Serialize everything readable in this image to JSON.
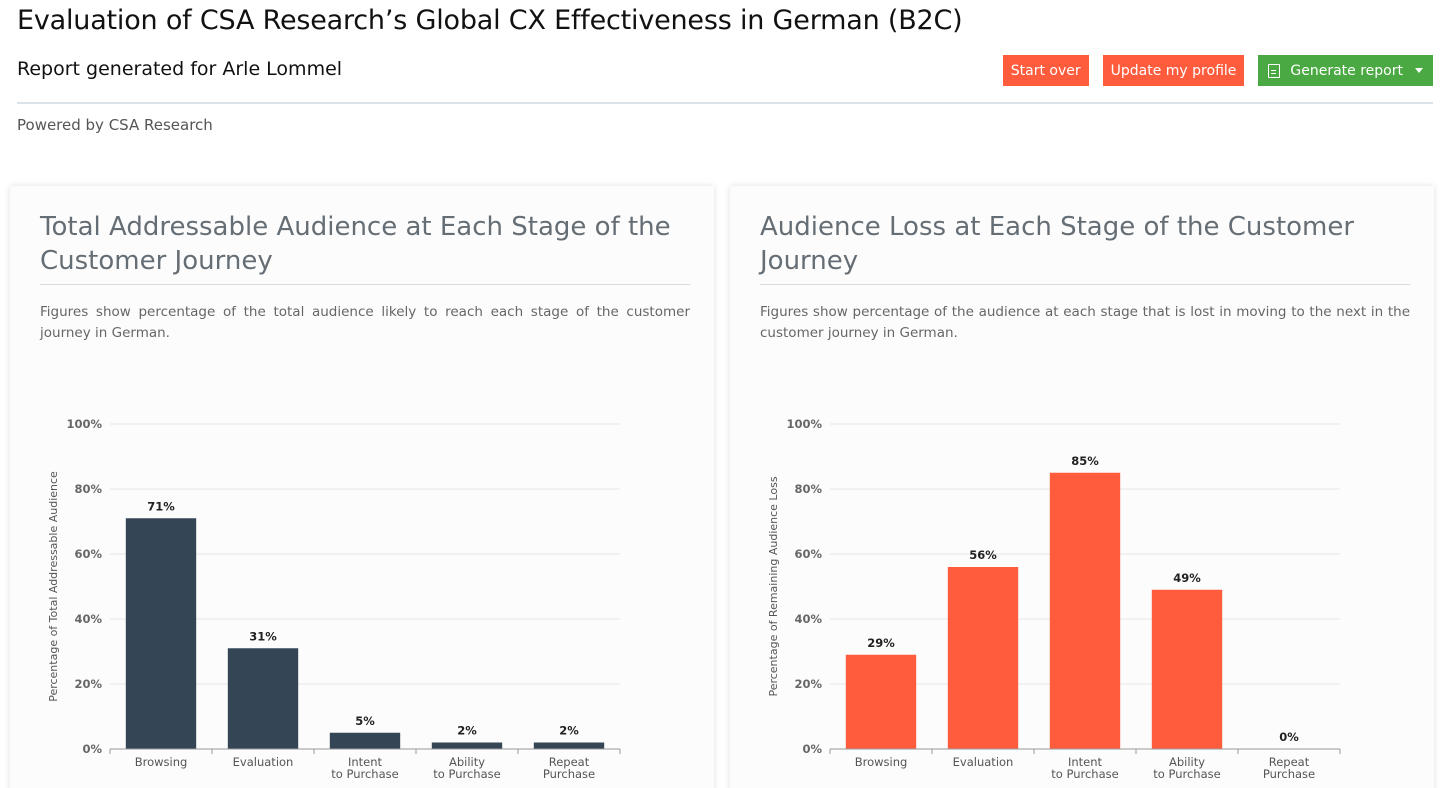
{
  "header": {
    "title": "Evaluation of CSA Research’s Global CX Effectiveness in German (B2C)",
    "subtitle": "Report generated for Arle Lommel",
    "powered_by": "Powered by CSA Research"
  },
  "actions": {
    "start_over": "Start over",
    "update_profile": "Update my profile",
    "generate_report": "Generate report",
    "generate_icon": "document-icon",
    "dropdown_icon": "caret-down-icon"
  },
  "colors": {
    "orange": "#fe5c3d",
    "green": "#4aa942",
    "navy": "#344556"
  },
  "panels": [
    {
      "title": "Total Addressable Audience at Each Stage of the Customer Journey",
      "description": "Figures show percentage of the total audience likely to reach each stage of the customer journey in German."
    },
    {
      "title": "Audience Loss at Each Stage of the Customer Journey",
      "description": "Figures show percentage of the audience at each stage that is lost in moving to the next in the customer journey in German."
    }
  ],
  "chart_data": [
    {
      "type": "bar",
      "categories": [
        "Browsing",
        "Evaluation",
        "Intent to Purchase",
        "Ability to Purchase",
        "Repeat Purchase"
      ],
      "category_lines": [
        [
          "Browsing"
        ],
        [
          "Evaluation"
        ],
        [
          "Intent",
          "to Purchase"
        ],
        [
          "Ability",
          "to Purchase"
        ],
        [
          "Repeat",
          "Purchase"
        ]
      ],
      "values": [
        71,
        31,
        5,
        2,
        2
      ],
      "data_labels": [
        "71%",
        "31%",
        "5%",
        "2%",
        "2%"
      ],
      "ylabel": "Percentage of Total Addressable Audience",
      "yticks": [
        "0%",
        "20%",
        "40%",
        "60%",
        "80%",
        "100%"
      ],
      "ylim": [
        0,
        100
      ],
      "color": "#344556",
      "grid": true
    },
    {
      "type": "bar",
      "categories": [
        "Browsing",
        "Evaluation",
        "Intent to Purchase",
        "Ability to Purchase",
        "Repeat Purchase"
      ],
      "category_lines": [
        [
          "Browsing"
        ],
        [
          "Evaluation"
        ],
        [
          "Intent",
          "to Purchase"
        ],
        [
          "Ability",
          "to Purchase"
        ],
        [
          "Repeat",
          "Purchase"
        ]
      ],
      "values": [
        29,
        56,
        85,
        49,
        0
      ],
      "data_labels": [
        "29%",
        "56%",
        "85%",
        "49%",
        "0%"
      ],
      "ylabel": "Percentage of Remaining Audience Loss",
      "yticks": [
        "0%",
        "20%",
        "40%",
        "60%",
        "80%",
        "100%"
      ],
      "ylim": [
        0,
        100
      ],
      "color": "#fe5c3d",
      "grid": true
    }
  ]
}
